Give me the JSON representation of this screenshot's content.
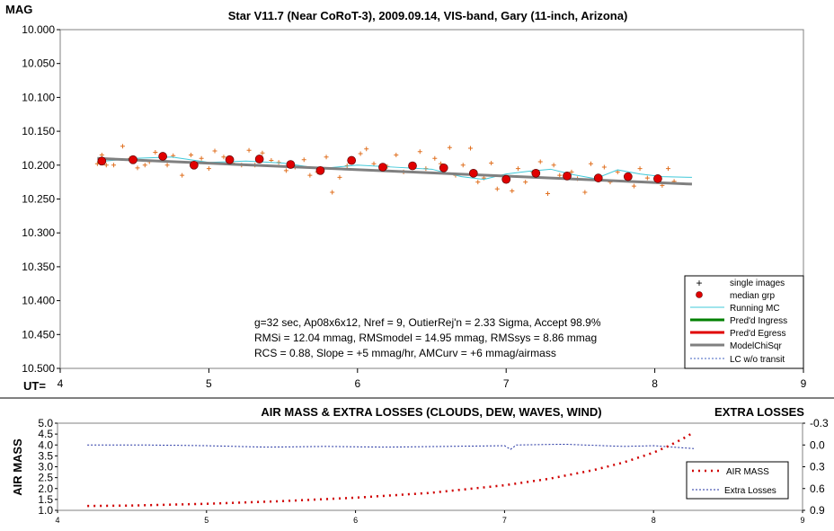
{
  "chart_data": [
    {
      "type": "scatter",
      "title": "Star V11.7 (Near CoRoT-3), 2009.09.14, VIS-band, Gary (11-inch, Arizona)",
      "ylabel": "MAG",
      "xlabel": "UT=",
      "xlim": [
        4,
        9
      ],
      "ylim": [
        10.0,
        10.5
      ],
      "y_inverted": true,
      "x_ticks": [
        "4",
        "5",
        "6",
        "7",
        "8",
        "9"
      ],
      "y_ticks": [
        "10.000",
        "10.050",
        "10.100",
        "10.150",
        "10.200",
        "10.250",
        "10.300",
        "10.350",
        "10.400",
        "10.450",
        "10.500"
      ],
      "annotation_lines": [
        "g=32 sec, Ap08x6x12, Nref = 9, OutierRej'n = 2.33 Sigma, Accept 98.9%",
        "RMSi = 12.04 mmag, RMSmodel = 14.95 mmag, RMSsys = 8.86 mmag",
        "RCS = 0.88, Slope = +5 mmag/hr, AMCurv = +6 mmag/airmass"
      ],
      "legend": [
        "single images",
        "median grp",
        "Running MC",
        "Pred'd Ingress",
        "Pred'd Egress",
        "ModelChiSqr",
        "LC w/o transit"
      ],
      "legend_position": "bottom-right",
      "colors": {
        "single": "#e07020",
        "median": "#e00000",
        "running": "#40c8d8",
        "ingress": "#008000",
        "egress": "#e00000",
        "model": "#808080",
        "lc": "#4060c0"
      },
      "series": [
        {
          "name": "median grp",
          "x": [
            4.28,
            4.49,
            4.69,
            4.9,
            5.14,
            5.34,
            5.55,
            5.75,
            5.96,
            6.17,
            6.37,
            6.58,
            6.78,
            7.0,
            7.2,
            7.41,
            7.62,
            7.82,
            8.02
          ],
          "y": [
            10.194,
            10.192,
            10.187,
            10.2,
            10.192,
            10.191,
            10.199,
            10.208,
            10.193,
            10.203,
            10.201,
            10.204,
            10.212,
            10.221,
            10.212,
            10.216,
            10.219,
            10.217,
            10.22
          ]
        },
        {
          "name": "ModelChiSqr",
          "x": [
            4.25,
            8.25
          ],
          "y": [
            10.19,
            10.228
          ]
        },
        {
          "name": "Running MC",
          "x": [
            4.25,
            4.5,
            4.75,
            5.0,
            5.25,
            5.5,
            5.75,
            6.0,
            6.25,
            6.5,
            6.7,
            6.85,
            7.0,
            7.15,
            7.3,
            7.45,
            7.6,
            7.75,
            7.9,
            8.05,
            8.25
          ],
          "y": [
            10.195,
            10.19,
            10.188,
            10.196,
            10.194,
            10.197,
            10.205,
            10.2,
            10.203,
            10.206,
            10.217,
            10.221,
            10.213,
            10.209,
            10.206,
            10.214,
            10.22,
            10.207,
            10.213,
            10.217,
            10.218
          ]
        }
      ],
      "single_images": {
        "x": [
          4.25,
          4.28,
          4.31,
          4.36,
          4.42,
          4.47,
          4.52,
          4.57,
          4.6,
          4.64,
          4.72,
          4.76,
          4.82,
          4.88,
          4.95,
          5.0,
          5.04,
          5.1,
          5.16,
          5.22,
          5.27,
          5.31,
          5.36,
          5.42,
          5.47,
          5.52,
          5.58,
          5.64,
          5.68,
          5.73,
          5.79,
          5.83,
          5.88,
          5.93,
          6.02,
          6.06,
          6.11,
          6.2,
          6.26,
          6.31,
          6.36,
          6.42,
          6.46,
          6.52,
          6.56,
          6.62,
          6.66,
          6.71,
          6.76,
          6.81,
          6.85,
          6.9,
          6.94,
          7.04,
          7.08,
          7.13,
          7.18,
          7.23,
          7.28,
          7.32,
          7.36,
          7.44,
          7.48,
          7.53,
          7.57,
          7.66,
          7.7,
          7.75,
          7.86,
          7.9,
          7.95,
          8.05,
          8.09,
          8.13
        ],
        "y": [
          10.198,
          10.185,
          10.2,
          10.2,
          10.172,
          10.19,
          10.204,
          10.2,
          10.195,
          10.181,
          10.2,
          10.186,
          10.215,
          10.185,
          10.19,
          10.205,
          10.179,
          10.188,
          10.197,
          10.2,
          10.178,
          10.2,
          10.182,
          10.193,
          10.196,
          10.208,
          10.203,
          10.192,
          10.215,
          10.21,
          10.188,
          10.24,
          10.218,
          10.201,
          10.183,
          10.176,
          10.198,
          10.202,
          10.185,
          10.21,
          10.2,
          10.18,
          10.205,
          10.19,
          10.198,
          10.174,
          10.215,
          10.2,
          10.175,
          10.225,
          10.219,
          10.197,
          10.235,
          10.238,
          10.205,
          10.225,
          10.21,
          10.195,
          10.242,
          10.2,
          10.215,
          10.21,
          10.22,
          10.24,
          10.198,
          10.203,
          10.225,
          10.21,
          10.231,
          10.205,
          10.219,
          10.23,
          10.205,
          10.224
        ]
      }
    },
    {
      "type": "line",
      "title": "AIR MASS & EXTRA LOSSES (CLOUDS, DEW, WAVES, WIND)",
      "ylabel": "AIR MASS",
      "y2label": "EXTRA LOSSES",
      "xlim": [
        4,
        9
      ],
      "ylim": [
        1.0,
        5.0
      ],
      "y2lim": [
        -0.3,
        0.9
      ],
      "x_ticks": [
        "4",
        "5",
        "6",
        "7",
        "8",
        "9"
      ],
      "y_ticks": [
        "1.0",
        "1.5",
        "2.0",
        "2.5",
        "3.0",
        "3.5",
        "4.0",
        "4.5",
        "5.0"
      ],
      "y2_ticks": [
        "-0.3",
        "0.0",
        "0.3",
        "0.6",
        "0.9"
      ],
      "legend": [
        "AIR MASS",
        "Extra Losses"
      ],
      "legend_position": "bottom-right",
      "colors": {
        "airmass": "#d00000",
        "losses": "#2030a0"
      },
      "series": [
        {
          "name": "AIR MASS",
          "x": [
            4.2,
            4.5,
            5.0,
            5.5,
            6.0,
            6.5,
            7.0,
            7.3,
            7.6,
            7.8,
            8.0,
            8.1,
            8.2,
            8.27
          ],
          "y": [
            1.2,
            1.22,
            1.3,
            1.42,
            1.58,
            1.8,
            2.15,
            2.45,
            2.85,
            3.2,
            3.65,
            3.95,
            4.3,
            4.58
          ]
        },
        {
          "name": "Extra Losses",
          "x": [
            4.2,
            4.6,
            5.0,
            5.4,
            5.8,
            6.2,
            6.6,
            7.0,
            7.04,
            7.08,
            7.4,
            7.8,
            8.0,
            8.27
          ],
          "y": [
            0.0,
            0.0,
            0.01,
            0.03,
            0.02,
            0.03,
            0.02,
            0.01,
            0.06,
            0.0,
            -0.01,
            0.02,
            0.01,
            0.05
          ]
        }
      ]
    }
  ]
}
